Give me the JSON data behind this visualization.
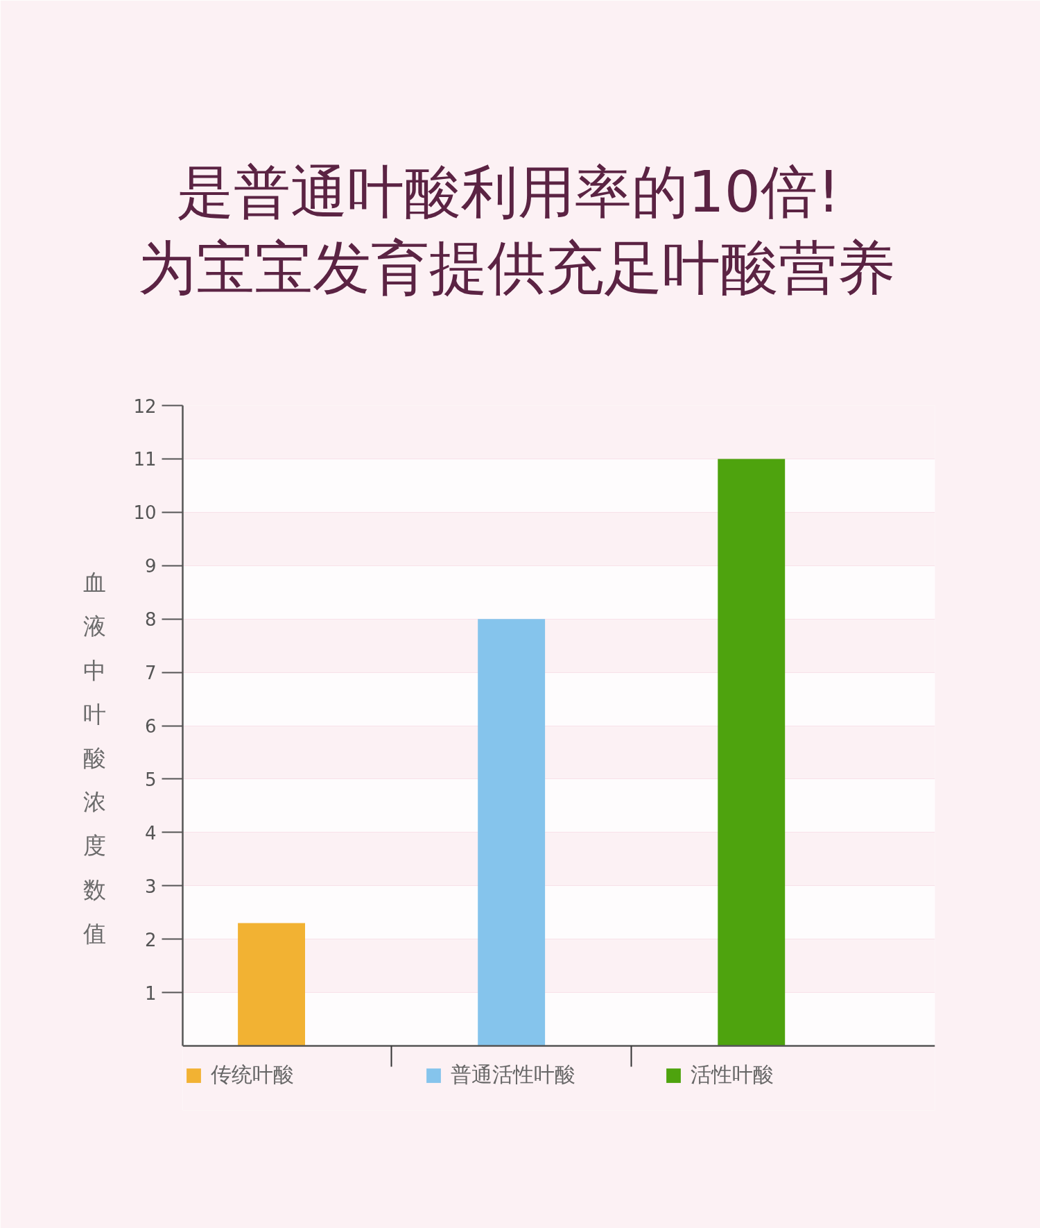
{
  "chart_data": {
    "type": "bar",
    "title": "是普通叶酸利用率的10倍!",
    "subtitle": "为宝宝发育提供充足叶酸营养",
    "ylabel": "血液中叶酸浓度数值",
    "categories": [
      null,
      null,
      null
    ],
    "series": [
      {
        "name": "传统叶酸",
        "color": "#f2b233",
        "values": [
          2.3,
          null,
          null
        ]
      },
      {
        "name": "普通活性叶酸",
        "color": "#85c4ec",
        "values": [
          null,
          8,
          null
        ]
      },
      {
        "name": "活性叶酸",
        "color": "#4ea30e",
        "values": [
          null,
          null,
          11
        ]
      }
    ],
    "ylim": [
      0,
      12
    ],
    "yticks": [
      1,
      2,
      3,
      4,
      5,
      6,
      7,
      8,
      9,
      10,
      11,
      12
    ],
    "grid": "y",
    "legend": "bottom"
  }
}
